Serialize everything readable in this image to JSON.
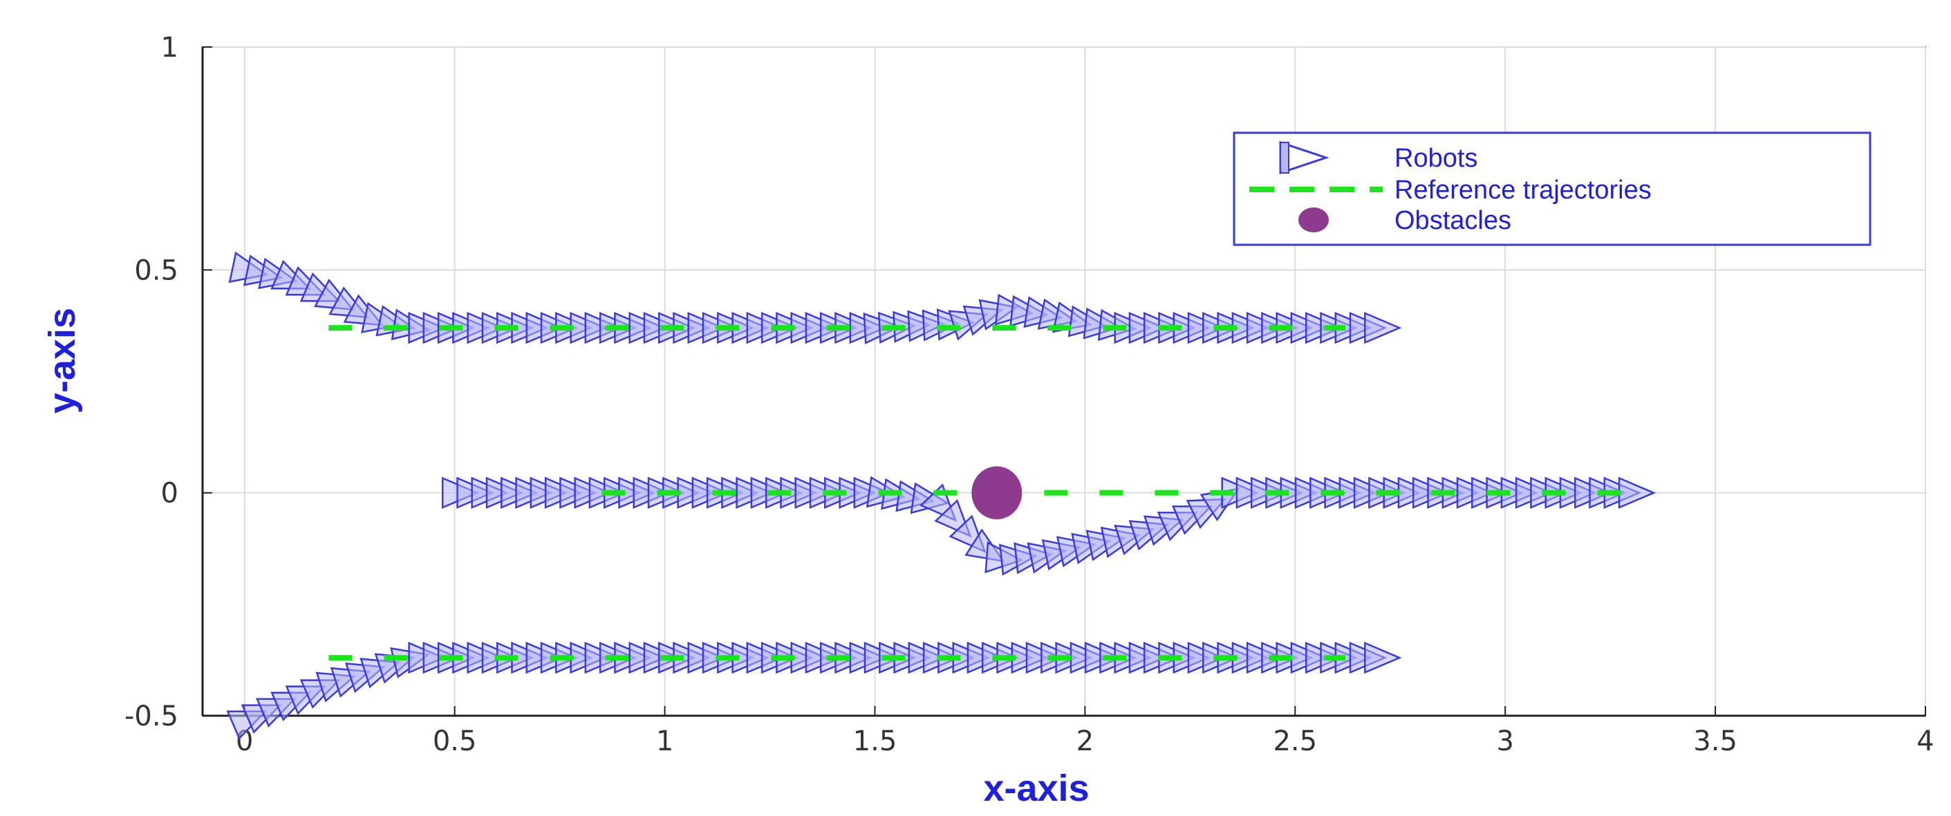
{
  "chart_data": {
    "type": "scatter",
    "title": "",
    "xlabel": "x-axis",
    "ylabel": "y-axis",
    "xlim": [
      -0.1,
      4
    ],
    "ylim": [
      -0.5,
      1
    ],
    "xticks": [
      0,
      0.5,
      1,
      1.5,
      2,
      2.5,
      3,
      3.5,
      4
    ],
    "xtick_labels": [
      "0",
      "0.5",
      "1",
      "1.5",
      "2",
      "2.5",
      "3",
      "3.5",
      "4"
    ],
    "yticks": [
      -0.5,
      0,
      0.5,
      1
    ],
    "ytick_labels": [
      "-0.5",
      "0",
      "0.5",
      "1"
    ],
    "grid": true,
    "legend_position": "top-right",
    "legend": [
      {
        "label": "Robots",
        "marker": "triangle-right-outline",
        "color": "#3a3ae0"
      },
      {
        "label": "Reference trajectories",
        "marker": "dashed-line",
        "color": "#19e619"
      },
      {
        "label": "Obstacles",
        "marker": "filled-circle",
        "color": "#8e3a8e"
      }
    ],
    "colors": {
      "robot_edge": "#3a3ae0",
      "robot_fill": "#b7b7f2",
      "reference": "#19e619",
      "obstacle": "#8e3a8e",
      "axis_title": "#1f1fe0",
      "grid": "#dcdcdc"
    },
    "series": [
      {
        "name": "Robots",
        "kind": "robot-path",
        "x": [
          0.0,
          0.1,
          0.2,
          0.3,
          0.4,
          0.5,
          1.0,
          1.5,
          1.7,
          1.8,
          1.9,
          2.0,
          2.1,
          2.2,
          2.3,
          2.4,
          2.5,
          2.6,
          2.7
        ],
        "y": [
          0.5,
          0.48,
          0.44,
          0.39,
          0.37,
          0.37,
          0.37,
          0.37,
          0.38,
          0.41,
          0.4,
          0.38,
          0.37,
          0.37,
          0.37,
          0.37,
          0.37,
          0.37,
          0.37
        ]
      },
      {
        "name": "Robots",
        "kind": "robot-path",
        "x": [
          0.5,
          1.0,
          1.5,
          1.65,
          1.75,
          1.8,
          1.9,
          2.0,
          2.1,
          2.2,
          2.3,
          2.35,
          2.5,
          3.0,
          3.3
        ],
        "y": [
          0.0,
          0.0,
          0.0,
          -0.02,
          -0.12,
          -0.15,
          -0.14,
          -0.12,
          -0.1,
          -0.07,
          -0.03,
          0.0,
          0.0,
          0.0,
          0.0
        ]
      },
      {
        "name": "Robots",
        "kind": "robot-path",
        "x": [
          0.0,
          0.1,
          0.2,
          0.3,
          0.4,
          0.5,
          1.0,
          1.5,
          2.0,
          2.4,
          2.6,
          2.7
        ],
        "y": [
          -0.51,
          -0.47,
          -0.43,
          -0.4,
          -0.37,
          -0.37,
          -0.37,
          -0.37,
          -0.37,
          -0.37,
          -0.37,
          -0.37
        ]
      },
      {
        "name": "Reference trajectories",
        "kind": "reference",
        "x": [
          0.2,
          2.62
        ],
        "y": [
          0.37,
          0.37
        ]
      },
      {
        "name": "Reference trajectories",
        "kind": "reference",
        "x": [
          0.85,
          3.3
        ],
        "y": [
          0.0,
          0.0
        ]
      },
      {
        "name": "Reference trajectories",
        "kind": "reference",
        "x": [
          0.2,
          2.62
        ],
        "y": [
          -0.37,
          -0.37
        ]
      },
      {
        "name": "Obstacles",
        "kind": "obstacle",
        "x": [
          1.79
        ],
        "y": [
          0.0
        ],
        "r": [
          0.06
        ]
      }
    ]
  }
}
